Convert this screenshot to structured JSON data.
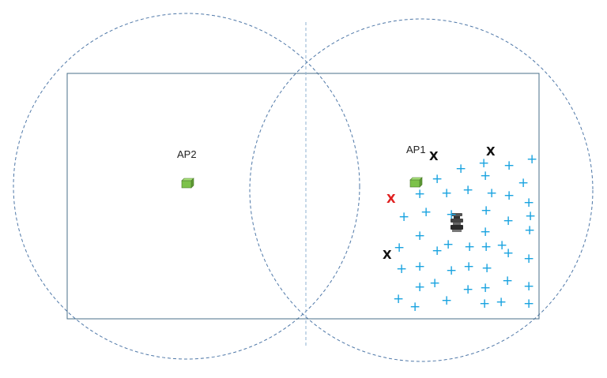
{
  "access_points": [
    {
      "label": "AP2",
      "icon": "green-box-icon"
    },
    {
      "label": "AP1",
      "icon": "green-box-icon"
    }
  ],
  "colors": {
    "room_border": "#4a6f8a",
    "coverage_circle": "#4f78a8",
    "divider": "#8fb0d0",
    "plus_marker": "#1aa3e0",
    "x_marker_dark": "#111111",
    "x_marker_red": "#e02020",
    "ap_box": "#7cc24a"
  },
  "markers": {
    "plus_symbol": "+",
    "x_symbol": "X"
  },
  "device_icon": "robot-icon"
}
